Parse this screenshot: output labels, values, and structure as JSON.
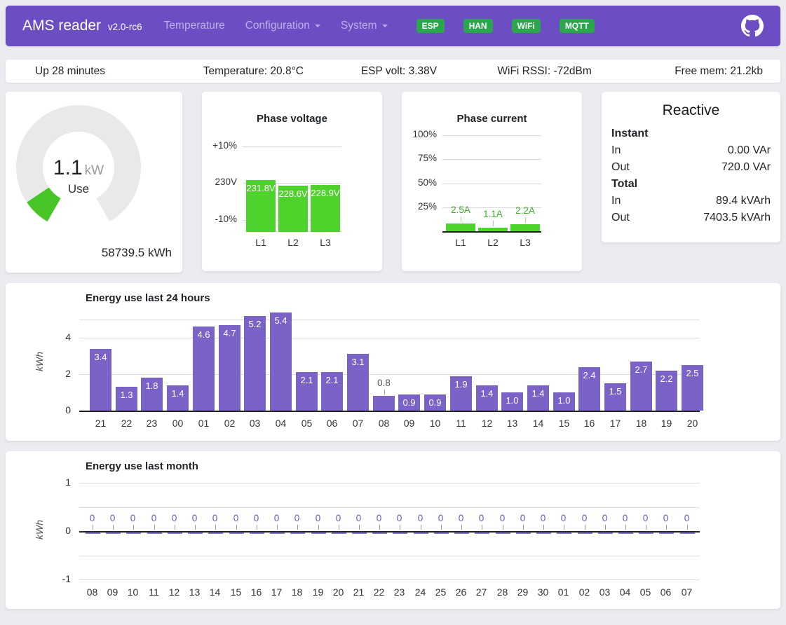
{
  "navbar": {
    "brand": "AMS reader",
    "version": "v2.0-rc6",
    "nav_items": [
      {
        "label": "Temperature",
        "dropdown": false
      },
      {
        "label": "Configuration",
        "dropdown": true
      },
      {
        "label": "System",
        "dropdown": true
      }
    ],
    "status_badges": [
      {
        "label": "ESP"
      },
      {
        "label": "HAN"
      },
      {
        "label": "WiFi"
      },
      {
        "label": "MQTT"
      }
    ],
    "badge_color": "#2aa74c",
    "background_color": "#6d4dc3",
    "github_icon": "github-octocat"
  },
  "status_bar": {
    "uptime": "Up 28 minutes",
    "temperature": "Temperature: 20.8°C",
    "esp_volt": "ESP volt: 3.38V",
    "wifi_rssi": "WiFi RSSI: -72dBm",
    "free_mem": "Free mem: 21.2kb"
  },
  "gauge": {
    "value": "1.1",
    "unit": "kW",
    "label": "Use",
    "total": "58739.5 kWh",
    "arc_color": "#47c527",
    "track_color": "#e9e9e9"
  },
  "reactive": {
    "title": "Reactive",
    "sections": [
      {
        "header": "Instant",
        "rows": [
          {
            "label": "In",
            "value": "0.00 VAr"
          },
          {
            "label": "Out",
            "value": "720.0 VAr"
          }
        ]
      },
      {
        "header": "Total",
        "rows": [
          {
            "label": "In",
            "value": "89.4 kVArh"
          },
          {
            "label": "Out",
            "value": "7403.5 kVArh"
          }
        ]
      }
    ]
  },
  "chart_data": [
    {
      "id": "phase-voltage",
      "type": "bar",
      "title": "Phase voltage",
      "categories": [
        "L1",
        "L2",
        "L3"
      ],
      "values": [
        231.8,
        228.6,
        228.9
      ],
      "value_labels": [
        "231.8V",
        "228.6V",
        "228.9V"
      ],
      "ylim": [
        199.5,
        256.5
      ],
      "gridlines": [
        {
          "value": 253,
          "label": "+10%"
        },
        {
          "value": 230,
          "label": "230V"
        },
        {
          "value": 207,
          "label": "-10%"
        }
      ],
      "bar_color": "#4ed22c",
      "value_label_color": "#ffffff",
      "grid_on": true,
      "legend": "none"
    },
    {
      "id": "phase-current",
      "type": "bar",
      "title": "Phase current",
      "categories": [
        "L1",
        "L2",
        "L3"
      ],
      "values": [
        2.5,
        1.1,
        2.2
      ],
      "value_labels": [
        "2.5A",
        "1.1A",
        "2.2A"
      ],
      "max_amps": 32,
      "gridlines": [
        {
          "value": 100,
          "label": "100%"
        },
        {
          "value": 75,
          "label": "75%"
        },
        {
          "value": 50,
          "label": "50%"
        },
        {
          "value": 25,
          "label": "25%"
        }
      ],
      "bar_color": "#4ed22c",
      "value_label_color": "#3fae27",
      "grid_on": true,
      "legend": "none"
    },
    {
      "id": "energy-24h",
      "type": "bar",
      "title": "Energy use last 24 hours",
      "xlabel": "",
      "ylabel": "kWh",
      "categories": [
        "21",
        "22",
        "23",
        "00",
        "01",
        "02",
        "03",
        "04",
        "05",
        "06",
        "07",
        "08",
        "09",
        "10",
        "11",
        "12",
        "13",
        "14",
        "15",
        "16",
        "17",
        "18",
        "19",
        "20"
      ],
      "values": [
        3.4,
        1.3,
        1.8,
        1.4,
        4.6,
        4.7,
        5.2,
        5.4,
        2.1,
        2.1,
        3.1,
        0.8,
        0.9,
        0.9,
        1.9,
        1.4,
        1.0,
        1.4,
        1.0,
        2.4,
        1.5,
        2.7,
        2.2,
        2.5
      ],
      "value_labels": [
        "3.4",
        "1.3",
        "1.8",
        "1.4",
        "4.6",
        "4.7",
        "5.2",
        "5.4",
        "2.1",
        "2.1",
        "3.1",
        "0.8",
        "0.9",
        "0.9",
        "1.9",
        "1.4",
        "1.0",
        "1.4",
        "1.0",
        "2.4",
        "1.5",
        "2.7",
        "2.2",
        "2.5"
      ],
      "ylim": [
        0,
        5.65
      ],
      "yticks": [
        {
          "value": 0,
          "label": "0"
        },
        {
          "value": 2,
          "label": "2"
        },
        {
          "value": 4,
          "label": "4"
        },
        {
          "value": 5,
          "label": ""
        }
      ],
      "bar_color": "#7b62c6",
      "label_in_color": "#ffffff",
      "label_out_color": "#555555",
      "grid_on": true,
      "legend": "none"
    },
    {
      "id": "energy-month",
      "type": "bar",
      "title": "Energy use last month",
      "xlabel": "",
      "ylabel": "kWh",
      "categories": [
        "08",
        "09",
        "10",
        "11",
        "12",
        "13",
        "14",
        "15",
        "16",
        "17",
        "18",
        "19",
        "20",
        "21",
        "22",
        "23",
        "24",
        "25",
        "26",
        "27",
        "28",
        "29",
        "30",
        "01",
        "02",
        "03",
        "04",
        "05",
        "06",
        "07"
      ],
      "values": [
        0,
        0,
        0,
        0,
        0,
        0,
        0,
        0,
        0,
        0,
        0,
        0,
        0,
        0,
        0,
        0,
        0,
        0,
        0,
        0,
        0,
        0,
        0,
        0,
        0,
        0,
        0,
        0,
        0,
        0
      ],
      "value_labels": [
        "0",
        "0",
        "0",
        "0",
        "0",
        "0",
        "0",
        "0",
        "0",
        "0",
        "0",
        "0",
        "0",
        "0",
        "0",
        "0",
        "0",
        "0",
        "0",
        "0",
        "0",
        "0",
        "0",
        "0",
        "0",
        "0",
        "0",
        "0",
        "0",
        "0"
      ],
      "ylim": [
        -1.3,
        1.3
      ],
      "yticks": [
        {
          "value": 1,
          "label": "1"
        },
        {
          "value": 0.5,
          "label": ""
        },
        {
          "value": 0,
          "label": "0"
        },
        {
          "value": -0.5,
          "label": ""
        },
        {
          "value": -1,
          "label": "-1"
        }
      ],
      "bar_color": "#7b62c6",
      "label_in_color": "#ffffff",
      "label_out_color": "#6c54c4",
      "grid_on": true,
      "legend": "none"
    }
  ]
}
